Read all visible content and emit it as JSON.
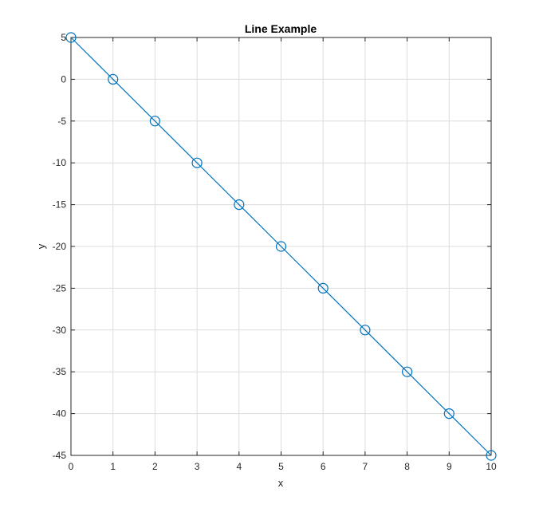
{
  "chart_data": {
    "type": "line",
    "title": "Line Example",
    "xlabel": "x",
    "ylabel": "y",
    "xlim": [
      0,
      10
    ],
    "ylim": [
      -45,
      5
    ],
    "xticks": [
      0,
      1,
      2,
      3,
      4,
      5,
      6,
      7,
      8,
      9,
      10
    ],
    "yticks": [
      5,
      0,
      -5,
      -10,
      -15,
      -20,
      -25,
      -30,
      -35,
      -40,
      -45
    ],
    "grid": true,
    "legend": "none",
    "series": [
      {
        "x": [
          0,
          1,
          2,
          3,
          4,
          5,
          6,
          7,
          8,
          9,
          10
        ],
        "y": [
          5,
          0,
          -5,
          -10,
          -15,
          -20,
          -25,
          -30,
          -35,
          -40,
          -45
        ],
        "color": "#0072BD",
        "marker": "circle",
        "line_style": "solid"
      }
    ]
  }
}
